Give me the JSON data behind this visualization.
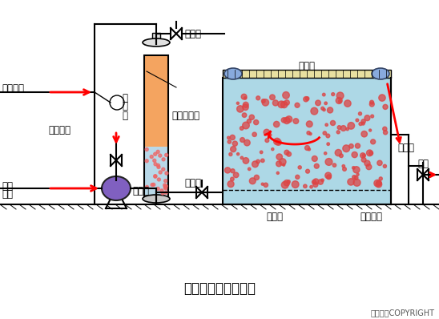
{
  "title": "全溶气气浮工艺流程",
  "copyright": "东方仿真COPYRIGHT",
  "bg_color": "#ffffff",
  "tank_color": "#add8e6",
  "pv_orange": "#f4a460",
  "pv_blue": "#b8d8e8",
  "pump_color": "#8060c0",
  "roller_color": "#88aadd",
  "bubble_color": "#dd4444",
  "scraper_color": "#e8e0a0",
  "labels": {
    "air_in": "空气进入",
    "chemical": "化学药剂",
    "raw_water_1": "原水",
    "raw_water_2": "进入",
    "pressure_gauge_1": "压",
    "pressure_gauge_2": "力",
    "pressure_gauge_3": "表",
    "pressure_tank": "压力溶气罐",
    "pressure_relief": "减压阀",
    "vent_valve": "放气阀",
    "pressurizer": "加压泵",
    "scraper": "刮渣机",
    "flotation_right": "气浮池",
    "flotation_bottom": "气浮池",
    "collection_system": "集水系统",
    "effluent": "出水"
  }
}
